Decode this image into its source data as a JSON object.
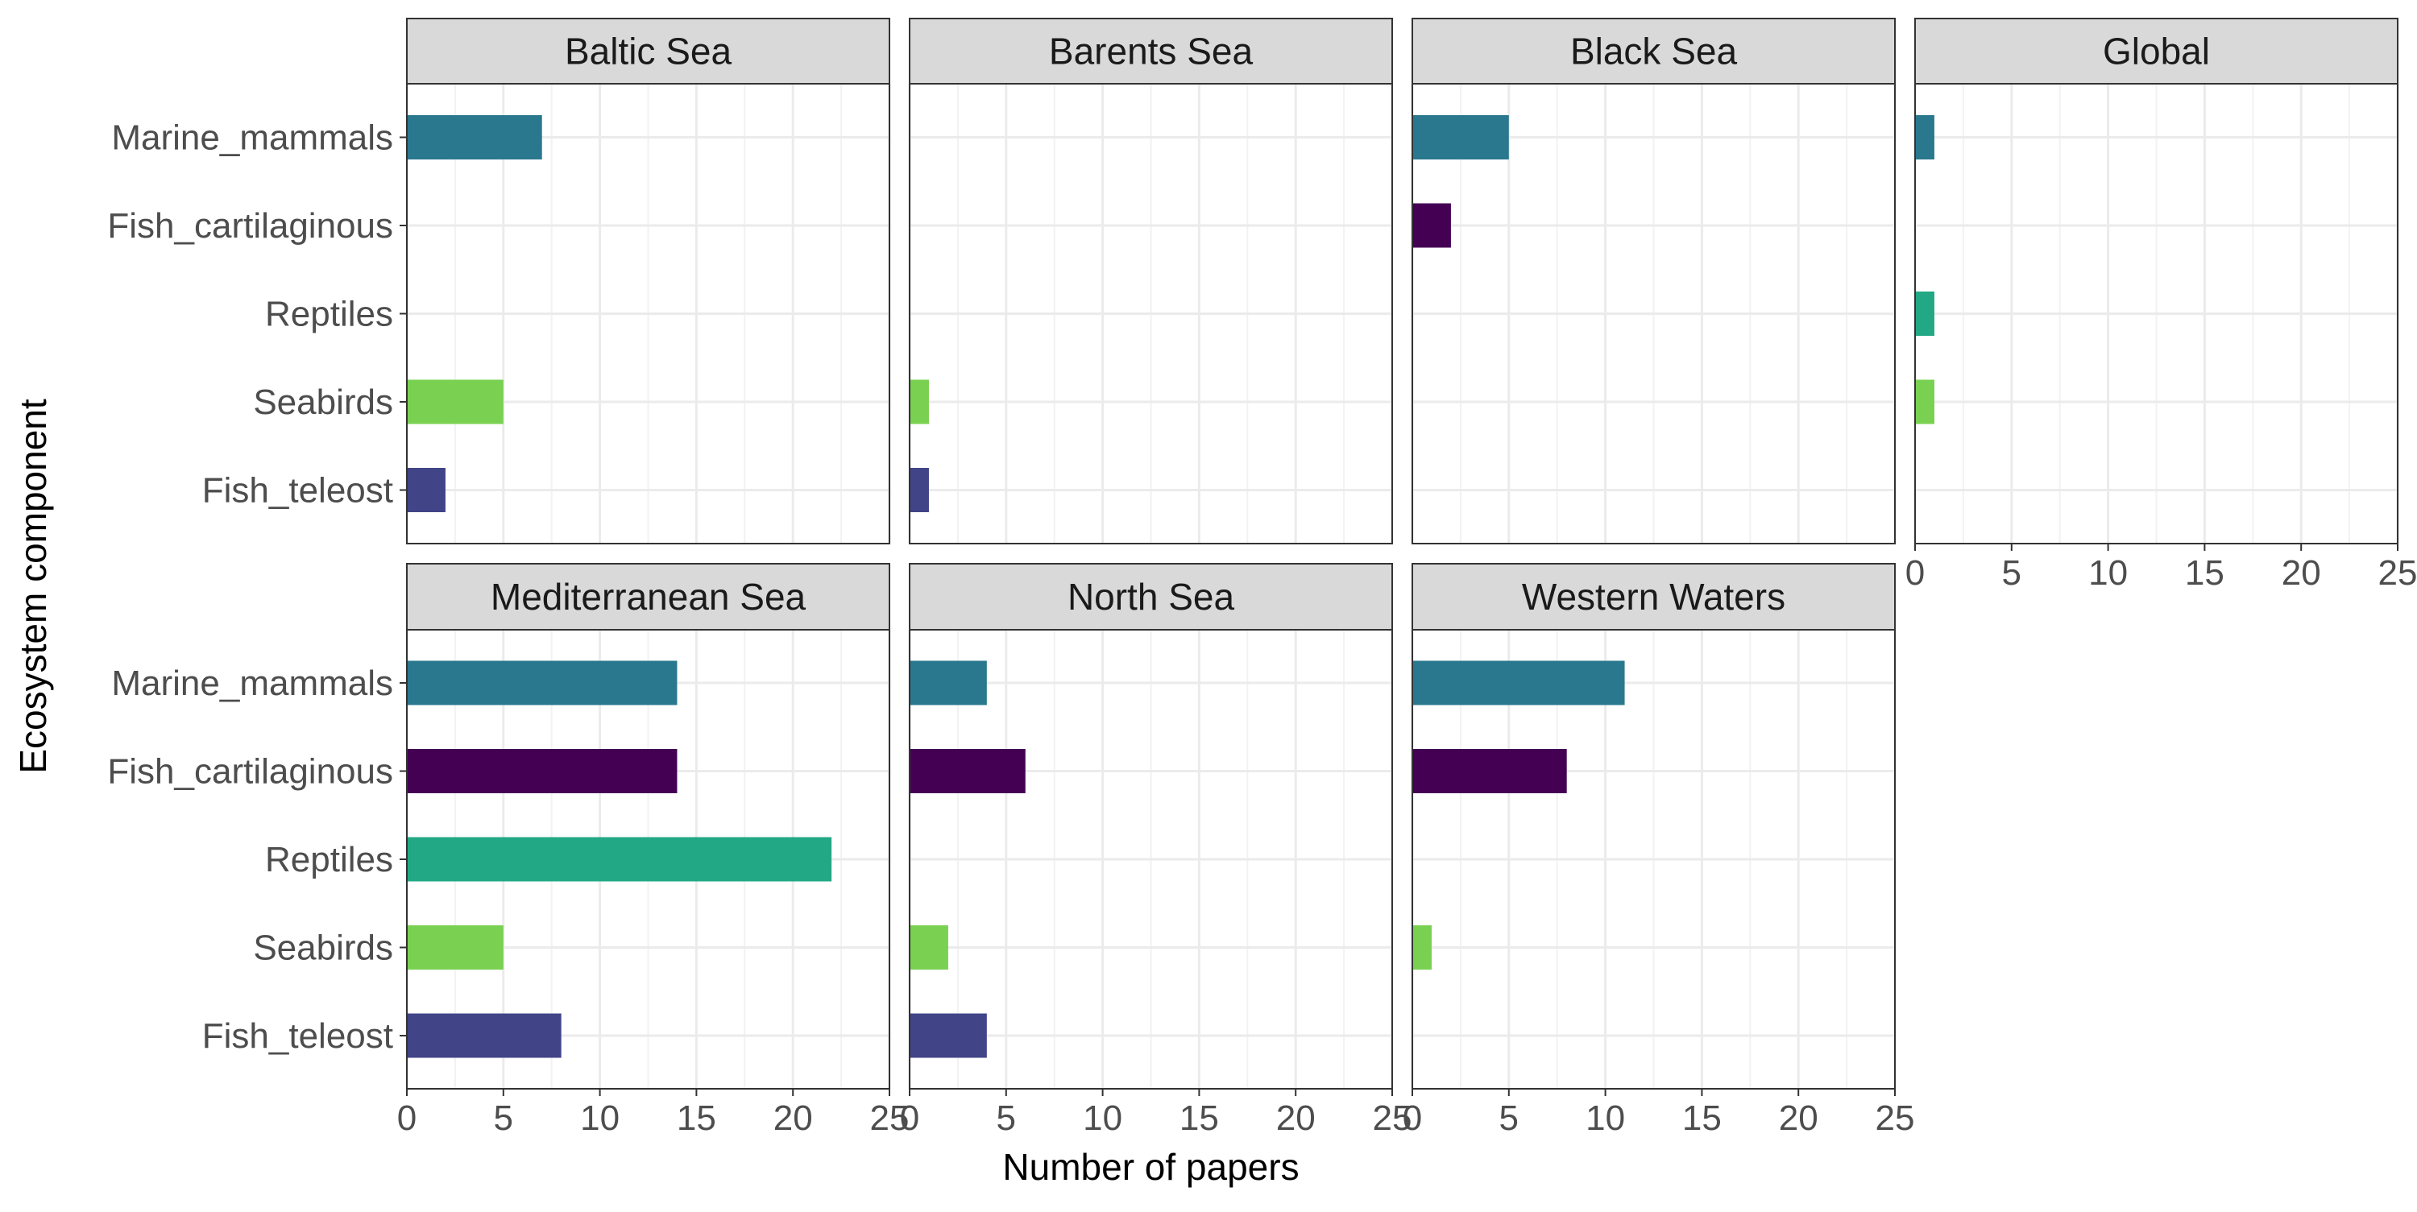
{
  "chart_data": {
    "type": "bar",
    "orientation": "horizontal",
    "faceted": true,
    "title": "",
    "xlabel": "Number of papers",
    "ylabel": "Ecosystem component",
    "xlim": [
      0,
      25
    ],
    "xticks": [
      0,
      5,
      10,
      15,
      20,
      25
    ],
    "grid": true,
    "legend": "none",
    "categories": [
      "Marine_mammals",
      "Fish_cartilaginous",
      "Reptiles",
      "Seabirds",
      "Fish_teleost"
    ],
    "colors": {
      "Marine_mammals": "#2A788E",
      "Fish_cartilaginous": "#440154",
      "Reptiles": "#22A884",
      "Seabirds": "#7AD151",
      "Fish_teleost": "#414487"
    },
    "panels": [
      {
        "name": "Baltic Sea",
        "values": {
          "Marine_mammals": 7,
          "Fish_cartilaginous": 0,
          "Reptiles": 0,
          "Seabirds": 5,
          "Fish_teleost": 2
        }
      },
      {
        "name": "Barents Sea",
        "values": {
          "Marine_mammals": 0,
          "Fish_cartilaginous": 0,
          "Reptiles": 0,
          "Seabirds": 1,
          "Fish_teleost": 1
        }
      },
      {
        "name": "Black Sea",
        "values": {
          "Marine_mammals": 5,
          "Fish_cartilaginous": 2,
          "Reptiles": 0,
          "Seabirds": 0,
          "Fish_teleost": 0
        }
      },
      {
        "name": "Global",
        "values": {
          "Marine_mammals": 1,
          "Fish_cartilaginous": 0,
          "Reptiles": 1,
          "Seabirds": 1,
          "Fish_teleost": 0
        }
      },
      {
        "name": "Mediterranean Sea",
        "values": {
          "Marine_mammals": 14,
          "Fish_cartilaginous": 14,
          "Reptiles": 22,
          "Seabirds": 5,
          "Fish_teleost": 8
        }
      },
      {
        "name": "North Sea",
        "values": {
          "Marine_mammals": 4,
          "Fish_cartilaginous": 6,
          "Reptiles": 0,
          "Seabirds": 2,
          "Fish_teleost": 4
        }
      },
      {
        "name": "Western Waters",
        "values": {
          "Marine_mammals": 11,
          "Fish_cartilaginous": 8,
          "Reptiles": 0,
          "Seabirds": 1,
          "Fish_teleost": 0
        }
      }
    ]
  }
}
